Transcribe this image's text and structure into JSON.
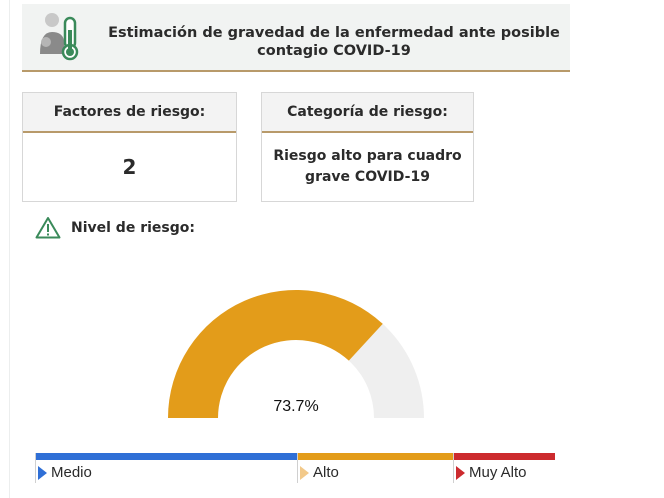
{
  "header": {
    "title": "Estimación de gravedad de la enfermedad ante posible contagio COVID-19",
    "icon": "patient-thermometer-icon"
  },
  "factores": {
    "label": "Factores de riesgo:",
    "value": "2"
  },
  "categoria": {
    "label": "Categoría de riesgo:",
    "value": "Riesgo alto para cuadro grave COVID-19"
  },
  "nivel": {
    "label": "Nivel de riesgo:",
    "icon": "warning-icon"
  },
  "gauge": {
    "value_percent": 73.7,
    "display": "73.7%",
    "fill_color": "#e39c1a",
    "track_color": "#efefef"
  },
  "scale": [
    {
      "label": "Medio",
      "color": "#2f6fd6"
    },
    {
      "label": "Alto",
      "color": "#e39c1a"
    },
    {
      "label": "Muy Alto",
      "color": "#cc2a2e"
    }
  ],
  "colors": {
    "accent_border": "#b89a6a",
    "header_icon": "#3a8a5a"
  }
}
